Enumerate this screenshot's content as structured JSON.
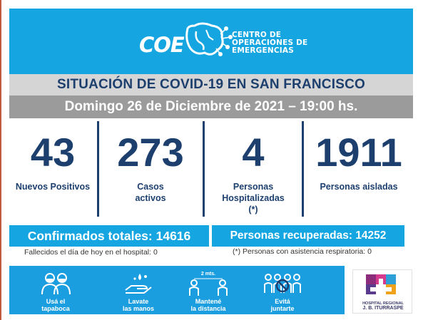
{
  "header": {
    "brand_short": "COE",
    "brand_long_line1": "CENTRO DE",
    "brand_long_line2": "OPERACIONES DE",
    "brand_long_line3": "EMERGENCIAS",
    "background_color": "#15a6e2"
  },
  "title": "SITUACIÓN DE COVID-19 EN SAN FRANCISCO",
  "date": "Domingo 26 de Diciembre de 2021 – 19:00 hs.",
  "stats": [
    {
      "value": "43",
      "label_line1": "Nuevos Positivos",
      "label_line2": "",
      "label_line3": ""
    },
    {
      "value": "273",
      "label_line1": "Casos",
      "label_line2": "activos",
      "label_line3": ""
    },
    {
      "value": "4",
      "label_line1": "Personas",
      "label_line2": "Hospitalizadas",
      "label_line3": "(*)"
    },
    {
      "value": "1911",
      "label_line1": "Personas aisladas",
      "label_line2": "",
      "label_line3": ""
    }
  ],
  "totals": {
    "confirmed": "Confirmados totales: 14616",
    "recovered": "Personas recuperadas: 14252"
  },
  "notes": {
    "deaths": "Fallecidos el día de hoy en el hospital: 0",
    "respiratory": "(*) Personas con asistencia respiratoria: 0"
  },
  "tips": [
    {
      "icon": "mask-people-icon",
      "line1": "Usá el",
      "line2": "tapaboca"
    },
    {
      "icon": "hand-wash-icon",
      "line1": "Lavate",
      "line2": "las manos"
    },
    {
      "icon": "distance-icon",
      "line1": "Mantené",
      "line2": "la distancia",
      "distance_label": "2 mts."
    },
    {
      "icon": "no-gathering-icon",
      "line1": "Evitá",
      "line2": "juntarte"
    }
  ],
  "hospital": {
    "line1": "HOSPITAL REGIONAL",
    "line2": "J. B. ITURRASPE"
  },
  "colors": {
    "navy": "#1d3f6e",
    "cyan": "#15a6e2",
    "grey_light": "#d5d5d5",
    "grey_dark": "#9b9b9b"
  }
}
